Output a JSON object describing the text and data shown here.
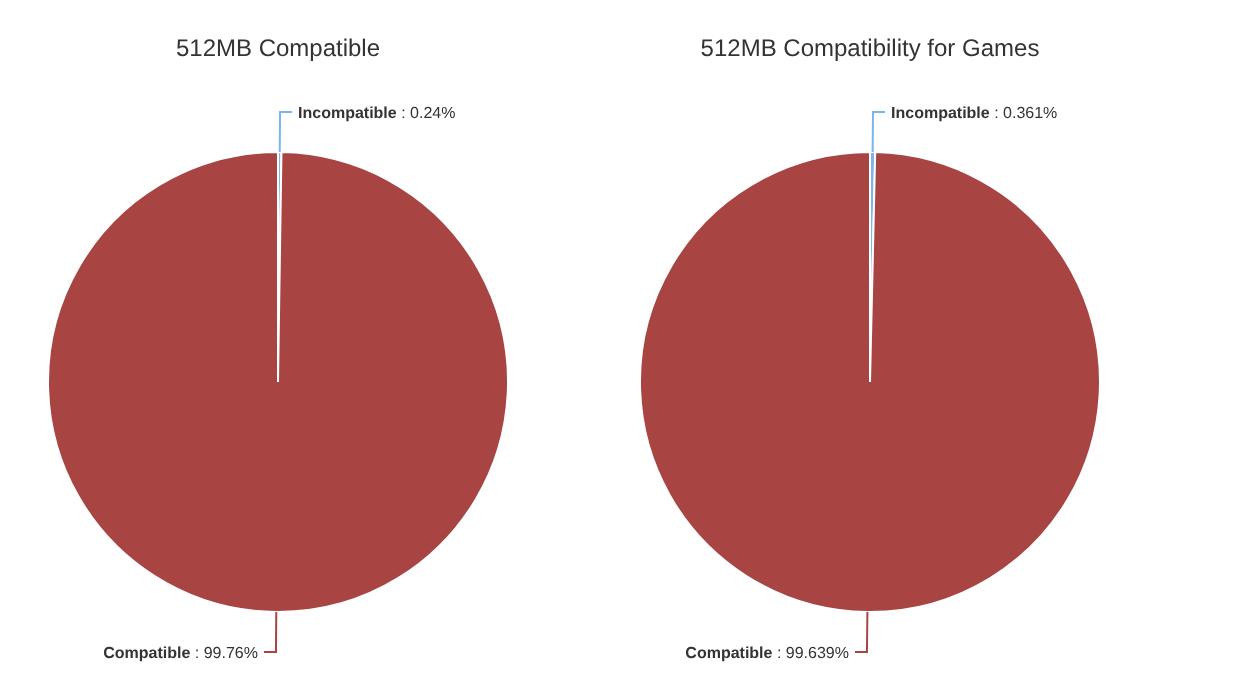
{
  "chart_data": [
    {
      "type": "pie",
      "title": "512MB Compatible",
      "categories": [
        "Incompatible",
        "Compatible"
      ],
      "values": [
        0.24,
        99.76
      ],
      "colors": [
        "#7cb5ec",
        "#a84442"
      ],
      "value_labels": [
        ": 0.24%",
        ": 99.76%"
      ]
    },
    {
      "type": "pie",
      "title": "512MB Compatibility for Games",
      "categories": [
        "Incompatible",
        "Compatible"
      ],
      "values": [
        0.361,
        99.639
      ],
      "colors": [
        "#7cb5ec",
        "#a84442"
      ],
      "value_labels": [
        ": 0.361%",
        ": 99.639%"
      ]
    }
  ]
}
